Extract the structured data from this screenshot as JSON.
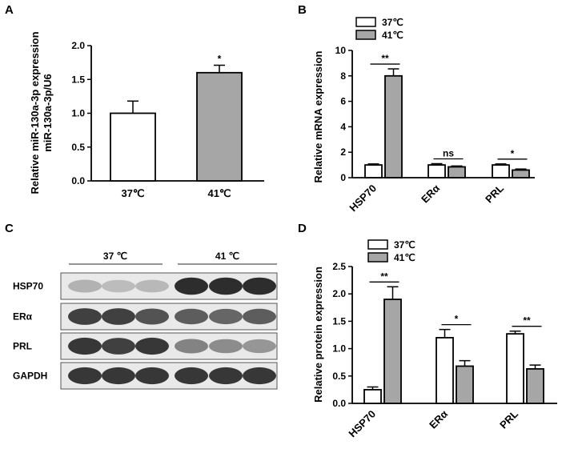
{
  "panels": {
    "A": {
      "letter": "A",
      "chart_data": {
        "type": "bar",
        "categories": [
          "37℃",
          "41℃"
        ],
        "values": [
          1.0,
          1.6
        ],
        "errors": [
          0.18,
          0.11
        ],
        "colors": [
          "#ffffff",
          "#a6a6a6"
        ],
        "ylabel_line1": "Relative miR-130a-3p expression",
        "ylabel_line2": "miR-130a-3p/U6",
        "ylim": [
          0,
          2.0
        ],
        "yticks": [
          "0.0",
          "0.5",
          "1.0",
          "1.5",
          "2.0"
        ],
        "annotations": [
          "",
          "*"
        ]
      }
    },
    "B": {
      "letter": "B",
      "chart_data": {
        "type": "bar",
        "categories": [
          "HSP70",
          "ERα",
          "PRL"
        ],
        "series": [
          {
            "name": "37℃",
            "color": "#ffffff",
            "values": [
              1.0,
              1.0,
              1.0
            ],
            "errors": [
              0.08,
              0.1,
              0.08
            ]
          },
          {
            "name": "41℃",
            "color": "#a6a6a6",
            "values": [
              8.0,
              0.85,
              0.6
            ],
            "errors": [
              0.55,
              0.07,
              0.08
            ]
          }
        ],
        "ylabel": "Relative mRNA expression",
        "ylim": [
          0,
          10
        ],
        "yticks": [
          "0",
          "2",
          "4",
          "6",
          "8",
          "10"
        ],
        "significance": [
          "**",
          "ns",
          "*"
        ]
      }
    },
    "C": {
      "letter": "C",
      "group_labels": [
        "37 ℃",
        "41 ℃"
      ],
      "rows": [
        {
          "label": "HSP70",
          "intensity": [
            0.25,
            0.2,
            0.22,
            0.95,
            0.95,
            0.95
          ]
        },
        {
          "label": "ERα",
          "intensity": [
            0.85,
            0.85,
            0.75,
            0.7,
            0.65,
            0.7
          ]
        },
        {
          "label": "PRL",
          "intensity": [
            0.9,
            0.85,
            0.9,
            0.5,
            0.45,
            0.4
          ]
        },
        {
          "label": "GAPDH",
          "intensity": [
            0.9,
            0.9,
            0.9,
            0.9,
            0.9,
            0.9
          ]
        }
      ]
    },
    "D": {
      "letter": "D",
      "chart_data": {
        "type": "bar",
        "categories": [
          "HSP70",
          "ERα",
          "PRL"
        ],
        "series": [
          {
            "name": "37℃",
            "color": "#ffffff",
            "values": [
              0.25,
              1.2,
              1.27
            ],
            "errors": [
              0.05,
              0.15,
              0.05
            ]
          },
          {
            "name": "41℃",
            "color": "#a6a6a6",
            "values": [
              1.9,
              0.68,
              0.63
            ],
            "errors": [
              0.23,
              0.1,
              0.07
            ]
          }
        ],
        "ylabel": "Relative protein expression",
        "ylim": [
          0,
          2.5
        ],
        "yticks": [
          "0.0",
          "0.5",
          "1.0",
          "1.5",
          "2.0",
          "2.5"
        ],
        "significance": [
          "**",
          "*",
          "**"
        ]
      }
    }
  }
}
